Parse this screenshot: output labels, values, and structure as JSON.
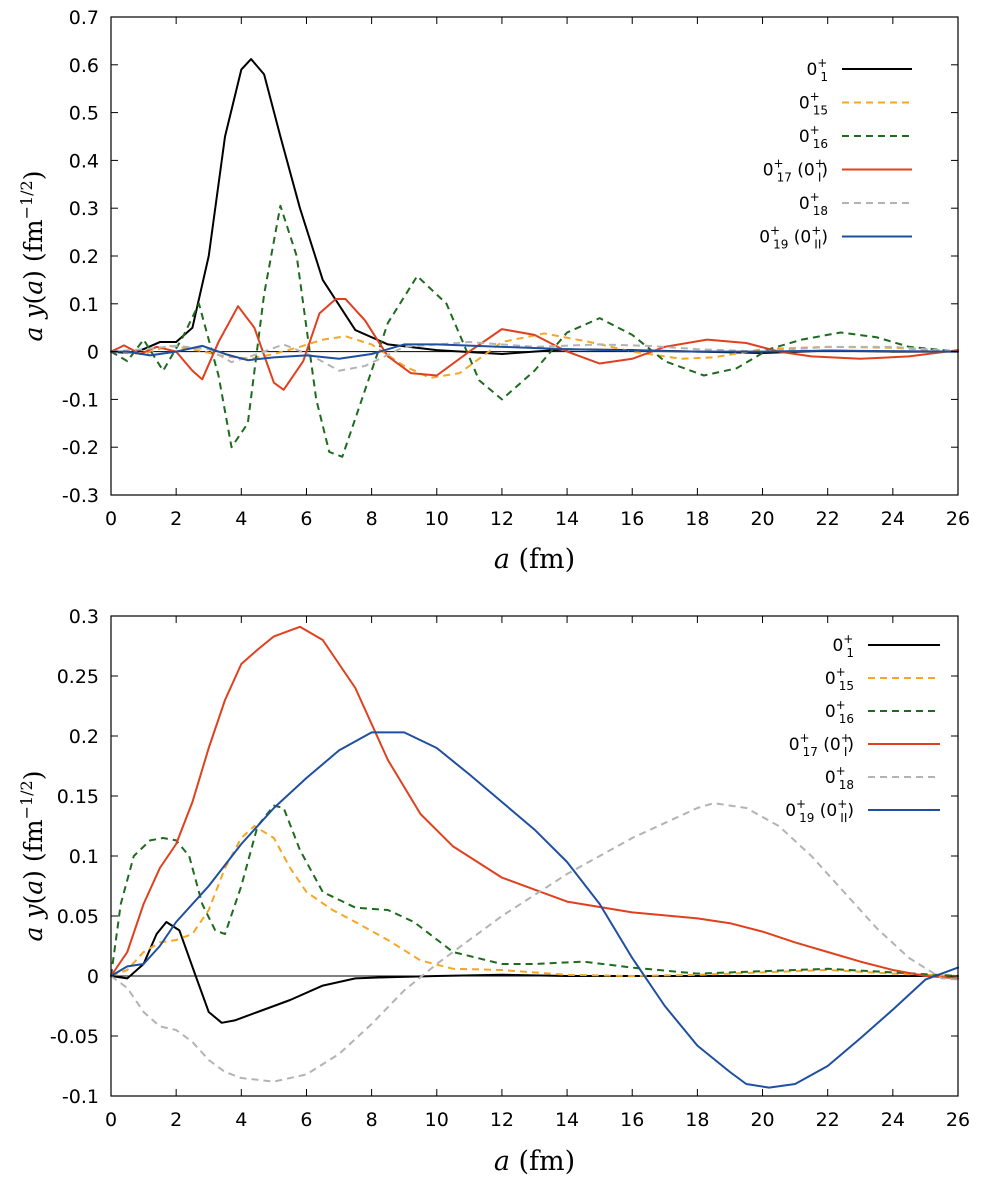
{
  "chart_data": [
    {
      "type": "line",
      "xlabel": "a (fm)",
      "ylabel": "a y(a) (fm^-1/2)",
      "xlabel_parts": {
        "italic": "a",
        "rest": " (fm)"
      },
      "ylabel_parts": {
        "a": "a",
        "y": "y",
        "paren_open": "(",
        "arg": "a",
        "paren_close": ")",
        "unit": " (fm",
        "exp": "−1/2",
        "unit_close": ")"
      },
      "xlim": [
        0,
        26
      ],
      "ylim": [
        -0.3,
        0.7
      ],
      "xticks": [
        "0",
        "2",
        "4",
        "6",
        "8",
        "10",
        "12",
        "14",
        "16",
        "18",
        "20",
        "22",
        "24",
        "26"
      ],
      "yticks": [
        "-0.3",
        "-0.2",
        "-0.1",
        "0",
        "0.1",
        "0.2",
        "0.3",
        "0.4",
        "0.5",
        "0.6",
        "0.7"
      ],
      "legend_position": "top-right",
      "series": [
        {
          "name": "0_1^+",
          "legend": {
            "base": "0",
            "sup": "+",
            "sub": "1",
            "extra": ""
          },
          "color": "#000000",
          "style": "solid",
          "x": [
            0,
            0.5,
            1,
            1.5,
            2,
            2.5,
            3,
            3.5,
            4,
            4.3,
            4.7,
            5.2,
            5.8,
            6.5,
            7.5,
            8.5,
            10,
            12,
            14,
            16,
            18,
            20,
            22,
            24,
            26
          ],
          "y": [
            0,
            -0.003,
            0.005,
            0.02,
            0.02,
            0.05,
            0.2,
            0.45,
            0.59,
            0.612,
            0.58,
            0.45,
            0.3,
            0.15,
            0.045,
            0.015,
            0.003,
            -0.005,
            0.005,
            0.003,
            0,
            -0.003,
            0.002,
            0,
            0
          ]
        },
        {
          "name": "0_15^+",
          "legend": {
            "base": "0",
            "sup": "+",
            "sub": "15",
            "extra": ""
          },
          "color": "#f5a623",
          "style": "dashed",
          "x": [
            0,
            1,
            1.8,
            2.5,
            3.5,
            4.3,
            5,
            5.8,
            6.5,
            7.2,
            8,
            9,
            9.8,
            10.7,
            12,
            13.3,
            14.7,
            16,
            17.5,
            18.5,
            20,
            22,
            24,
            26
          ],
          "y": [
            0,
            -0.005,
            0.012,
            0.005,
            -0.01,
            -0.015,
            -0.005,
            0.01,
            0.025,
            0.032,
            0.015,
            -0.03,
            -0.055,
            -0.045,
            0.02,
            0.038,
            0.02,
            0.0,
            -0.015,
            -0.012,
            0.005,
            0.01,
            0.008,
            0
          ]
        },
        {
          "name": "0_16^+",
          "legend": {
            "base": "0",
            "sup": "+",
            "sub": "16",
            "extra": ""
          },
          "color": "#1e6b1e",
          "style": "dashed",
          "x": [
            0,
            0.5,
            1,
            1.6,
            2.2,
            2.7,
            3.3,
            3.7,
            4.2,
            4.7,
            5.2,
            5.7,
            6.3,
            6.7,
            7.1,
            7.7,
            8.5,
            9.4,
            10.3,
            11.3,
            12,
            13,
            14,
            15,
            16,
            17,
            18.2,
            19.2,
            20.2,
            21.2,
            22.4,
            23.5,
            24.5,
            26
          ],
          "y": [
            0,
            -0.02,
            0.025,
            -0.04,
            0.03,
            0.1,
            -0.05,
            -0.2,
            -0.15,
            0.12,
            0.305,
            0.2,
            -0.1,
            -0.21,
            -0.22,
            -0.1,
            0.06,
            0.158,
            0.1,
            -0.06,
            -0.1,
            -0.04,
            0.04,
            0.07,
            0.035,
            -0.02,
            -0.05,
            -0.035,
            0.005,
            0.025,
            0.04,
            0.03,
            0.01,
            0
          ]
        },
        {
          "name": "0_17^+ (0_I^+)",
          "legend": {
            "base": "0",
            "sup": "+",
            "sub": "17",
            "extra": " (0",
            "extra_sup": "+",
            "extra_sub": "I",
            "extra_close": ")"
          },
          "color": "#e0401e",
          "style": "solid",
          "x": [
            0,
            0.4,
            0.9,
            1.4,
            2,
            2.5,
            2.8,
            3.3,
            3.9,
            4.4,
            5,
            5.3,
            5.9,
            6.4,
            6.9,
            7.2,
            7.8,
            8.5,
            9.2,
            10,
            11,
            12,
            13,
            14,
            15,
            16,
            17,
            18.3,
            19.5,
            20.5,
            21.5,
            23,
            24.5,
            26
          ],
          "y": [
            0,
            0.013,
            -0.005,
            0.01,
            0.0,
            -0.04,
            -0.058,
            0.02,
            0.095,
            0.05,
            -0.065,
            -0.08,
            -0.02,
            0.08,
            0.11,
            0.11,
            0.065,
            -0.01,
            -0.045,
            -0.05,
            0.0,
            0.047,
            0.035,
            0.0,
            -0.025,
            -0.015,
            0.01,
            0.025,
            0.018,
            0.0,
            -0.01,
            -0.015,
            -0.01,
            0.003
          ]
        },
        {
          "name": "0_18^+",
          "legend": {
            "base": "0",
            "sup": "+",
            "sub": "18",
            "extra": ""
          },
          "color": "#b3b3b3",
          "style": "dashed",
          "x": [
            0,
            1,
            2,
            3,
            3.7,
            4.5,
            5.3,
            6.2,
            7,
            7.8,
            9,
            11,
            13,
            15,
            16.5,
            18,
            20,
            22,
            24,
            26
          ],
          "y": [
            0,
            0.005,
            0.012,
            0.005,
            -0.022,
            -0.005,
            0.015,
            -0.01,
            -0.04,
            -0.03,
            0.01,
            0.02,
            0.01,
            0.015,
            0.012,
            0.005,
            0,
            0.01,
            0.01,
            0
          ]
        },
        {
          "name": "0_19^+ (0_II^+)",
          "legend": {
            "base": "0",
            "sup": "+",
            "sub": "19",
            "extra": " (0",
            "extra_sup": "+",
            "extra_sub": "II",
            "extra_close": ")"
          },
          "color": "#1f4fa0",
          "style": "solid",
          "x": [
            0,
            0.5,
            1.2,
            2,
            2.8,
            3.5,
            4.2,
            5,
            6,
            7,
            8,
            9,
            10,
            12,
            14,
            16,
            18,
            20,
            22,
            24,
            26
          ],
          "y": [
            0,
            0.0,
            -0.008,
            0.0,
            0.012,
            -0.005,
            -0.018,
            -0.012,
            -0.008,
            -0.015,
            -0.005,
            0.015,
            0.015,
            0.01,
            0.005,
            0.002,
            0,
            0,
            0.002,
            0.001,
            0
          ]
        }
      ]
    },
    {
      "type": "line",
      "xlabel": "a (fm)",
      "ylabel": "a y(a) (fm^-1/2)",
      "xlabel_parts": {
        "italic": "a",
        "rest": " (fm)"
      },
      "ylabel_parts": {
        "a": "a",
        "y": "y",
        "paren_open": "(",
        "arg": "a",
        "paren_close": ")",
        "unit": " (fm",
        "exp": "−1/2",
        "unit_close": ")"
      },
      "xlim": [
        0,
        26
      ],
      "ylim": [
        -0.1,
        0.3
      ],
      "xticks": [
        "0",
        "2",
        "4",
        "6",
        "8",
        "10",
        "12",
        "14",
        "16",
        "18",
        "20",
        "22",
        "24",
        "26"
      ],
      "yticks": [
        "-0.1",
        "-0.05",
        "0",
        "0.05",
        "0.1",
        "0.15",
        "0.2",
        "0.25",
        "0.3"
      ],
      "legend_position": "top-right",
      "series": [
        {
          "name": "0_1^+",
          "legend": {
            "base": "0",
            "sup": "+",
            "sub": "1",
            "extra": ""
          },
          "color": "#000000",
          "style": "solid",
          "x": [
            0,
            0.5,
            1,
            1.4,
            1.7,
            2.1,
            2.6,
            3,
            3.4,
            3.8,
            4.5,
            5.5,
            6.5,
            7.5,
            8.5,
            10,
            12,
            14,
            16,
            18,
            20,
            22,
            24,
            26
          ],
          "y": [
            0,
            -0.002,
            0.01,
            0.035,
            0.045,
            0.038,
            0.0,
            -0.03,
            -0.039,
            -0.037,
            -0.03,
            -0.02,
            -0.008,
            -0.002,
            -0.001,
            0,
            0.001,
            0.0,
            0,
            0,
            0,
            0,
            0,
            0
          ]
        },
        {
          "name": "0_15^+",
          "legend": {
            "base": "0",
            "sup": "+",
            "sub": "15",
            "extra": ""
          },
          "color": "#f5a623",
          "style": "dashed",
          "x": [
            0,
            0.5,
            1,
            1.5,
            2,
            2.5,
            3,
            3.5,
            4,
            4.4,
            5,
            5.5,
            6,
            6.8,
            7.5,
            8.5,
            9.5,
            10.5,
            12,
            14,
            16,
            18,
            20,
            22,
            24,
            26
          ],
          "y": [
            0,
            0.005,
            0.02,
            0.028,
            0.03,
            0.035,
            0.055,
            0.09,
            0.115,
            0.125,
            0.115,
            0.09,
            0.07,
            0.055,
            0.045,
            0.03,
            0.013,
            0.006,
            0.005,
            0.001,
            0,
            0.001,
            0.003,
            0.005,
            0.002,
            0
          ]
        },
        {
          "name": "0_16^+",
          "legend": {
            "base": "0",
            "sup": "+",
            "sub": "16",
            "extra": ""
          },
          "color": "#1e6b1e",
          "style": "dashed",
          "x": [
            0,
            0.3,
            0.7,
            1.2,
            1.6,
            2,
            2.4,
            2.8,
            3.2,
            3.5,
            4,
            4.5,
            5,
            5.3,
            5.8,
            6.5,
            7.5,
            8.5,
            9.3,
            10.5,
            12,
            13,
            14.5,
            16,
            18,
            20,
            22,
            24,
            26
          ],
          "y": [
            0,
            0.06,
            0.1,
            0.113,
            0.115,
            0.113,
            0.1,
            0.06,
            0.038,
            0.035,
            0.075,
            0.125,
            0.142,
            0.14,
            0.105,
            0.07,
            0.057,
            0.055,
            0.045,
            0.02,
            0.01,
            0.01,
            0.012,
            0.007,
            0.002,
            0.004,
            0.006,
            0.003,
            0
          ]
        },
        {
          "name": "0_17^+ (0_I^+)",
          "legend": {
            "base": "0",
            "sup": "+",
            "sub": "17",
            "extra": " (0",
            "extra_sup": "+",
            "extra_sub": "I",
            "extra_close": ")"
          },
          "color": "#e0401e",
          "style": "solid",
          "x": [
            0,
            0.5,
            1,
            1.5,
            2,
            2.5,
            3,
            3.5,
            4,
            4.5,
            5,
            5.8,
            6.5,
            7.5,
            8.5,
            9.5,
            10.5,
            12,
            14,
            16,
            18,
            19,
            20,
            21,
            22,
            23,
            24,
            25,
            26
          ],
          "y": [
            0,
            0.02,
            0.06,
            0.09,
            0.11,
            0.145,
            0.19,
            0.23,
            0.26,
            0.272,
            0.283,
            0.291,
            0.28,
            0.24,
            0.18,
            0.135,
            0.108,
            0.082,
            0.062,
            0.053,
            0.048,
            0.044,
            0.037,
            0.028,
            0.02,
            0.012,
            0.005,
            0.0,
            -0.002
          ]
        },
        {
          "name": "0_18^+",
          "legend": {
            "base": "0",
            "sup": "+",
            "sub": "18",
            "extra": ""
          },
          "color": "#b3b3b3",
          "style": "dashed",
          "x": [
            0,
            0.5,
            1,
            1.5,
            2,
            2.5,
            3,
            3.5,
            4,
            5,
            6,
            7,
            8,
            9,
            10,
            12,
            14,
            16,
            18,
            18.5,
            19.5,
            20.5,
            21.5,
            22.5,
            23.5,
            24.5,
            25.5,
            26
          ],
          "y": [
            0,
            -0.01,
            -0.03,
            -0.042,
            -0.045,
            -0.055,
            -0.07,
            -0.08,
            -0.085,
            -0.088,
            -0.082,
            -0.065,
            -0.04,
            -0.012,
            0.01,
            0.05,
            0.085,
            0.115,
            0.14,
            0.144,
            0.14,
            0.125,
            0.1,
            0.07,
            0.04,
            0.015,
            -0.002,
            -0.003
          ]
        },
        {
          "name": "0_19^+ (0_II^+)",
          "legend": {
            "base": "0",
            "sup": "+",
            "sub": "19",
            "extra": " (0",
            "extra_sup": "+",
            "extra_sub": "II",
            "extra_close": ")"
          },
          "color": "#1f4fa0",
          "style": "solid",
          "x": [
            0,
            0.5,
            1,
            1.5,
            2,
            3,
            4,
            5,
            6,
            7,
            8,
            9,
            10,
            11,
            12,
            13,
            14,
            15,
            16,
            17,
            18,
            19,
            19.5,
            20.2,
            21,
            22,
            23,
            24,
            25,
            26
          ],
          "y": [
            0,
            0.008,
            0.01,
            0.025,
            0.045,
            0.075,
            0.11,
            0.14,
            0.165,
            0.188,
            0.203,
            0.203,
            0.19,
            0.168,
            0.145,
            0.122,
            0.095,
            0.06,
            0.015,
            -0.025,
            -0.058,
            -0.08,
            -0.09,
            -0.093,
            -0.09,
            -0.075,
            -0.052,
            -0.028,
            -0.003,
            0.007
          ]
        }
      ]
    }
  ]
}
